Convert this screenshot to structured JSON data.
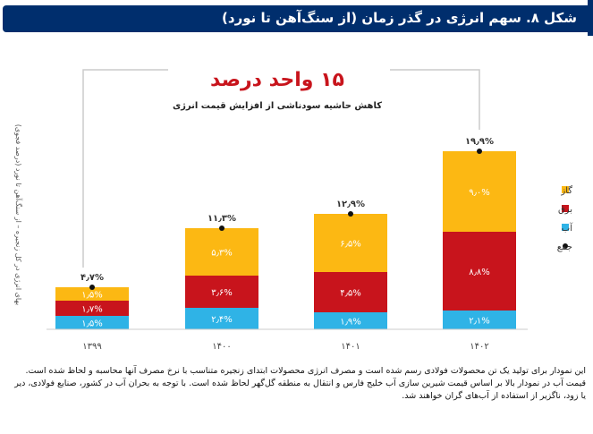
{
  "header": {
    "title": "شکل ۸. سهم انرژی در گذر زمان (از سنگ‌آهن تا نورد)"
  },
  "annotation": {
    "headline": "۱۵ واحد درصد",
    "subline": "کاهش حاشیه سودناشی از افزایش قیمت انرژی"
  },
  "notes": [
    "این نمودار برای تولید یک تن محصولات فولادی رسم شده است و مصرف انرژی محصولات ابتدای زنجیره متناسب با نرخ مصرف آنها محاسبه و لحاظ شده است.",
    "قیمت آب در نمودار بالا بر اساس قیمت شیرین سازی آب خلیج فارس و انتقال به منطقه گل‌گهر لحاظ شده است. با توجه به بحران آب در کشور، صنایع فولادی، دیر یا زود، ناگزیر از استفاده از آب‌های گران خواهند شد."
  ],
  "colors": {
    "water": "#2fb3e6",
    "electricity": "#c8141c",
    "gas": "#fcb813",
    "bracket": "#cccccc"
  },
  "chart_data": {
    "type": "bar",
    "stacked": true,
    "categories": [
      "۱۳۹۹",
      "۱۴۰۰",
      "۱۴۰۱",
      "۱۴۰۲"
    ],
    "series": [
      {
        "name": "آب",
        "key": "water",
        "values": [
          1.5,
          2.4,
          1.9,
          2.1
        ],
        "labels": [
          "۱٫۵%",
          "۲٫۴%",
          "۱٫۹%",
          "۲٫۱%"
        ]
      },
      {
        "name": "برق",
        "key": "electricity",
        "values": [
          1.7,
          3.6,
          4.5,
          8.8
        ],
        "labels": [
          "۱٫۷%",
          "۳٫۶%",
          "۴٫۵%",
          "۸٫۸%"
        ]
      },
      {
        "name": "گاز",
        "key": "gas",
        "values": [
          1.5,
          5.3,
          6.5,
          9.0
        ],
        "labels": [
          "۱٫۵%",
          "۵٫۳%",
          "۶٫۵%",
          "۹٫۰%"
        ]
      }
    ],
    "totals": {
      "name": "جمع",
      "values": [
        4.7,
        11.3,
        12.9,
        19.9
      ],
      "labels": [
        "۴٫۷%",
        "۱۱٫۳%",
        "۱۲٫۹%",
        "۱۹٫۹%"
      ]
    },
    "ylabel": "بهای انرژی در کل زنجیره – از سنگ‌آهن تا نورد (درصد فجوی)",
    "ylim": [
      0,
      20
    ],
    "grid": false,
    "legend_position": "right"
  }
}
